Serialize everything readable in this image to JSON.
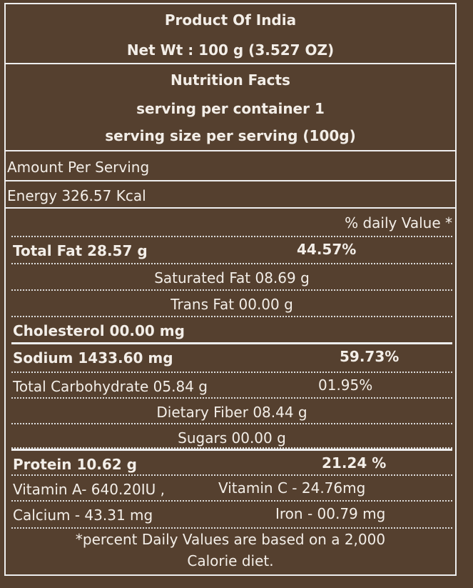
{
  "header": {
    "title": "Product Of India",
    "net_weight": "Net Wt : 100 g (3.527 OZ)"
  },
  "facts": {
    "title": "Nutrition Facts",
    "servings": "serving per container 1",
    "serving_size": "serving size per serving  (100g)"
  },
  "amount_label": "Amount Per Serving",
  "energy": "Energy 326.57 Kcal",
  "daily_value_header": "% daily Value *",
  "rows": [
    {
      "label": "Total Fat 28.57 g",
      "daily_value": "44.57%"
    },
    {
      "label": "Saturated Fat 08.69 g"
    },
    {
      "label": "Trans Fat 00.00 g"
    },
    {
      "label": "Cholesterol 00.00 mg"
    },
    {
      "label": "Sodium 1433.60 mg",
      "daily_value": "59.73%"
    },
    {
      "label": "Total Carbohydrate 05.84 g",
      "daily_value": "01.95%"
    },
    {
      "label": "Dietary Fiber 08.44 g"
    },
    {
      "label": "Sugars  00.00 g"
    },
    {
      "label": "Protein 10.62 g",
      "daily_value": "21.24 %"
    },
    {
      "label": "Vitamin A-  640.20IU ,",
      "daily_value": "Vitamin C - 24.76mg"
    },
    {
      "label": "Calcium -  43.31 mg",
      "daily_value": "Iron - 00.79 mg"
    }
  ],
  "footnote": "*percent Daily Values are based on a 2,000 Calorie diet."
}
